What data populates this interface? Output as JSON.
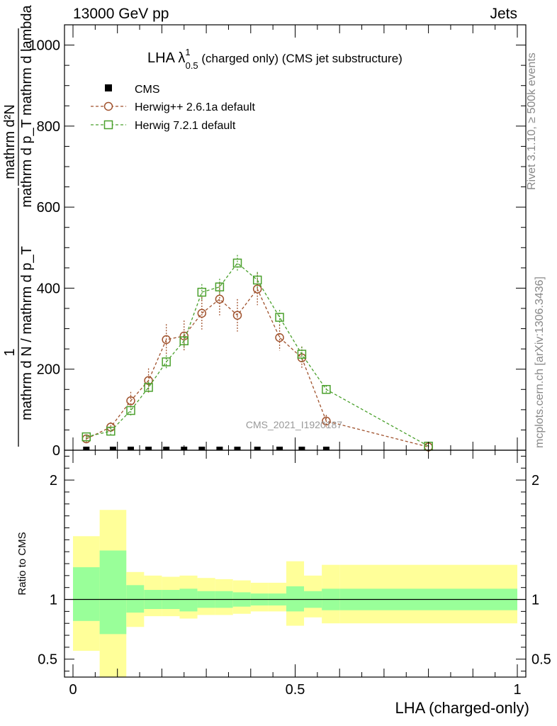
{
  "header": {
    "left_label": "13000 GeV pp",
    "right_label": "Jets"
  },
  "side_labels": {
    "rivet": "Rivet 3.1.10, ≥ 500k events",
    "mcplots": "mcplots.cern.ch [arXiv:1306.3436]"
  },
  "colors": {
    "herwig_pp": "#a0522d",
    "herwig_72": "#4aa02c",
    "band_inner": "#99ff99",
    "band_outer": "#ffff99",
    "cms": "#000000",
    "watermark": "#999999"
  },
  "chart_data": [
    {
      "type": "line",
      "title_parts": {
        "main": "LHA λ",
        "sup": "1",
        "sub": "0.5",
        "rest": " (charged only) (CMS jet substructure)"
      },
      "ylabel_top": "mathrm d²N",
      "ylabel_top_sub": "mathrm d p_T mathrm d lambda",
      "ylabel_numerator": "1",
      "ylabel_bottom": "mathrm d N / mathrm d p_T",
      "watermark": "CMS_2021_I1920187",
      "xlim": [
        0,
        1
      ],
      "ylim": [
        0,
        1050
      ],
      "yticks": [
        0,
        200,
        400,
        600,
        800,
        1000
      ],
      "ytick_labels": [
        "0",
        "200",
        "400",
        "600",
        "800",
        "1000"
      ],
      "legend": [
        {
          "name": "CMS",
          "marker": "square-filled"
        },
        {
          "name": "Herwig++ 2.6.1a default",
          "marker": "circle-open"
        },
        {
          "name": "Herwig 7.2.1 default",
          "marker": "square-open"
        }
      ],
      "series": [
        {
          "name": "CMS",
          "x": [
            0.03,
            0.09,
            0.13,
            0.17,
            0.21,
            0.25,
            0.29,
            0.33,
            0.37,
            0.415,
            0.465,
            0.515,
            0.57
          ],
          "y": [
            1,
            1,
            1,
            1,
            1,
            1,
            1,
            1,
            1,
            1,
            1,
            1,
            1
          ]
        },
        {
          "name": "Herwig++ 2.6.1a default",
          "x": [
            0.03,
            0.085,
            0.13,
            0.17,
            0.21,
            0.25,
            0.29,
            0.33,
            0.37,
            0.415,
            0.465,
            0.515,
            0.57,
            0.8
          ],
          "y": [
            28,
            57,
            122,
            172,
            273,
            282,
            338,
            373,
            333,
            398,
            278,
            228,
            72,
            8
          ],
          "err": [
            8,
            12,
            22,
            30,
            38,
            38,
            40,
            40,
            40,
            40,
            32,
            28,
            15,
            3
          ]
        },
        {
          "name": "Herwig 7.2.1 default",
          "x": [
            0.03,
            0.085,
            0.13,
            0.17,
            0.21,
            0.25,
            0.29,
            0.33,
            0.37,
            0.415,
            0.465,
            0.515,
            0.57,
            0.8
          ],
          "y": [
            33,
            47,
            98,
            155,
            218,
            270,
            390,
            403,
            462,
            420,
            328,
            237,
            150,
            10
          ],
          "err": [
            6,
            8,
            12,
            14,
            16,
            18,
            20,
            20,
            20,
            20,
            18,
            18,
            10,
            2
          ]
        }
      ]
    },
    {
      "type": "area",
      "ylabel": "Ratio to CMS",
      "xlabel": "LHA (charged-only)",
      "xlim": [
        0,
        1
      ],
      "xticks": [
        0,
        0.5,
        1
      ],
      "xtick_labels": [
        "0",
        "0.5",
        "1"
      ],
      "ylim": [
        0.35,
        2.25
      ],
      "yticks": [
        0.5,
        1,
        2
      ],
      "ytick_labels": [
        "0.5",
        "1",
        "2"
      ],
      "reference_line": 1,
      "bin_edges": [
        0.0,
        0.06,
        0.12,
        0.16,
        0.2,
        0.24,
        0.28,
        0.32,
        0.36,
        0.4,
        0.44,
        0.48,
        0.52,
        0.56,
        0.6,
        1.0
      ],
      "inner_band": {
        "low": [
          0.82,
          0.71,
          0.89,
          0.92,
          0.92,
          0.9,
          0.93,
          0.93,
          0.94,
          0.95,
          0.95,
          0.9,
          0.93,
          0.91,
          0.91
        ],
        "high": [
          1.27,
          1.41,
          1.12,
          1.08,
          1.08,
          1.09,
          1.07,
          1.07,
          1.06,
          1.05,
          1.05,
          1.11,
          1.07,
          1.09,
          1.09
        ]
      },
      "outer_band": {
        "low": [
          0.57,
          0.2,
          0.77,
          0.86,
          0.86,
          0.84,
          0.87,
          0.87,
          0.88,
          0.9,
          0.9,
          0.78,
          0.85,
          0.8,
          0.8
        ],
        "high": [
          1.53,
          1.75,
          1.23,
          1.2,
          1.19,
          1.2,
          1.18,
          1.17,
          1.16,
          1.14,
          1.14,
          1.32,
          1.2,
          1.29,
          1.29
        ]
      }
    }
  ]
}
